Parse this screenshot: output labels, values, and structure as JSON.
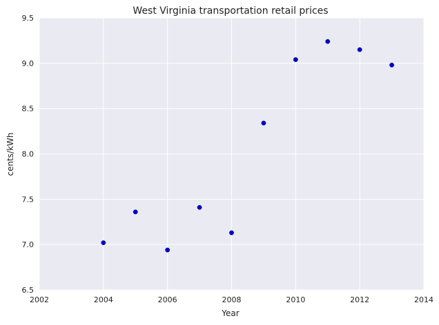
{
  "chart_data": {
    "type": "scatter",
    "title": "West Virginia   transportation retail prices",
    "xlabel": "Year",
    "ylabel": "cents/kWh",
    "xlim": [
      2002,
      2014
    ],
    "ylim": [
      6.5,
      9.5
    ],
    "xticks": [
      "2002",
      "2004",
      "2006",
      "2008",
      "2010",
      "2012",
      "2014"
    ],
    "yticks": [
      "6.5",
      "7.0",
      "7.5",
      "8.0",
      "8.5",
      "9.0",
      "9.5"
    ],
    "grid": true,
    "background_color": "#eaeaf2",
    "grid_color": "#ffffff",
    "marker_color": "#0000cc",
    "points": [
      {
        "x": 2004,
        "y": 7.02
      },
      {
        "x": 2005,
        "y": 7.36
      },
      {
        "x": 2006,
        "y": 6.94
      },
      {
        "x": 2007,
        "y": 7.41
      },
      {
        "x": 2008,
        "y": 7.13
      },
      {
        "x": 2009,
        "y": 8.34
      },
      {
        "x": 2010,
        "y": 9.04
      },
      {
        "x": 2011,
        "y": 9.24
      },
      {
        "x": 2012,
        "y": 9.15
      },
      {
        "x": 2013,
        "y": 8.98
      }
    ]
  }
}
